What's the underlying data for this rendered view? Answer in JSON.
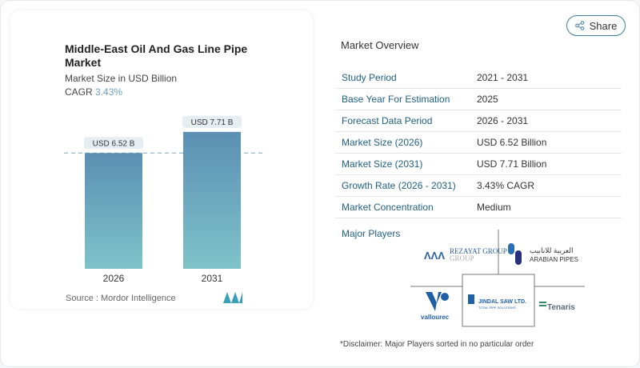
{
  "share_label": "Share",
  "card": {
    "title": "Middle-East Oil And Gas Line Pipe Market",
    "subtitle": "Market Size in USD Billion",
    "cagr_label": "CAGR",
    "cagr_value": "3.43%",
    "source": "Source :  Mordor Intelligence"
  },
  "chart_data": {
    "type": "bar",
    "categories": [
      "2026",
      "2031"
    ],
    "values": [
      6.52,
      7.71
    ],
    "data_labels": [
      "USD 6.52 B",
      "USD 7.71 B"
    ],
    "ylabel": "Market Size in USD Billion",
    "reference_line": 6.52,
    "colors": {
      "top": "#5b8fb3",
      "bottom": "#7fc3c9"
    }
  },
  "overview": {
    "title": "Market Overview",
    "rows": [
      {
        "k": "Study Period",
        "v": "2021 - 2031"
      },
      {
        "k": "Base Year For Estimation",
        "v": "2025"
      },
      {
        "k": "Forecast Data Period",
        "v": "2026 - 2031"
      },
      {
        "k": "Market Size (2026)",
        "v": "USD 6.52 Billion"
      },
      {
        "k": "Market Size (2031)",
        "v": "USD 7.71 Billion"
      },
      {
        "k": "Growth Rate (2026 - 2031)",
        "v": "3.43% CAGR"
      },
      {
        "k": "Market Concentration",
        "v": "Medium"
      }
    ]
  },
  "major_players": {
    "title": "Major Players",
    "logos": [
      "REZAYAT GROUP",
      "ARABIAN PIPES",
      "vallourec",
      "JINDAL SAW LTD.",
      "Tenaris"
    ],
    "logo_sub": {
      "rezayat": "GROUP",
      "jindal": "TOTAL PIPE SOLUTIONS",
      "arabic": "العربية للانابيب"
    }
  },
  "disclaimer": "*Disclaimer: Major Players sorted in no particular order"
}
